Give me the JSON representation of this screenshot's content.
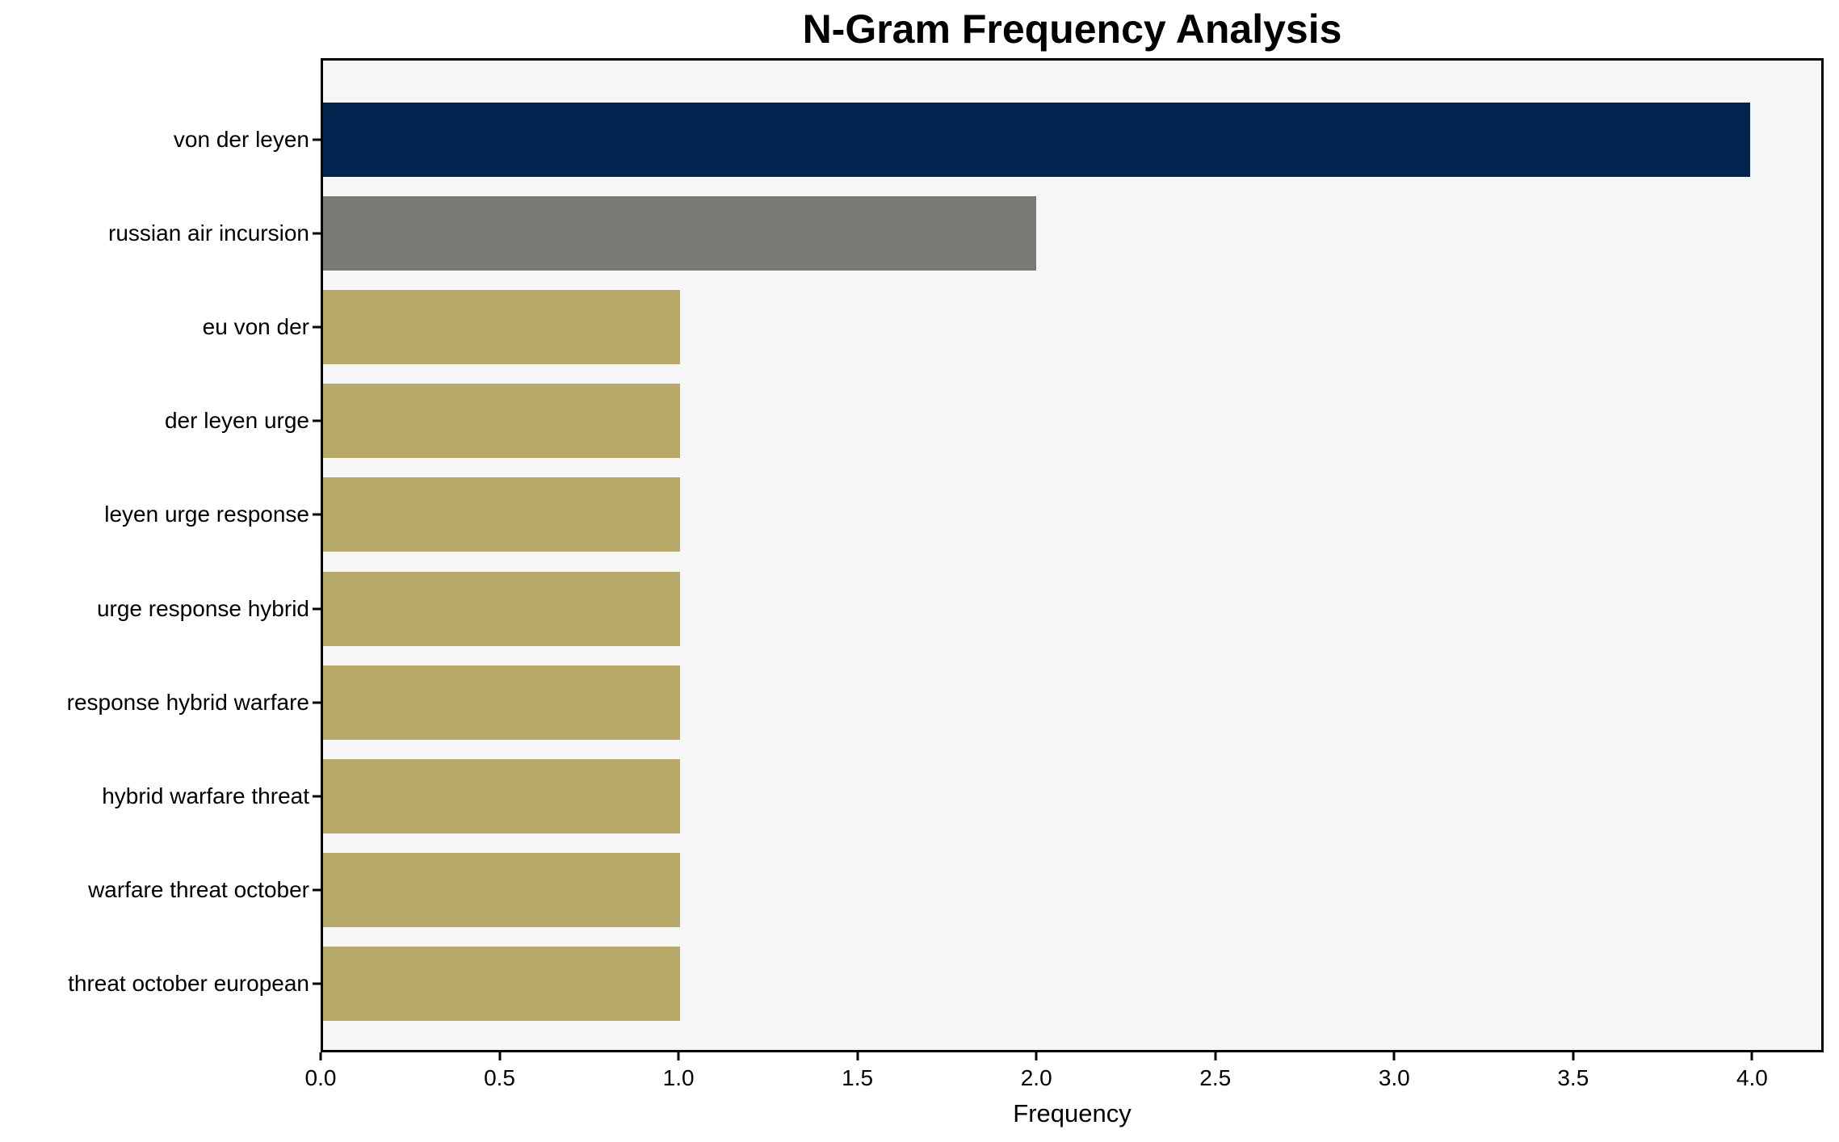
{
  "chart_data": {
    "type": "bar",
    "orientation": "horizontal",
    "title": "N-Gram Frequency Analysis",
    "xlabel": "Frequency",
    "ylabel": "",
    "categories": [
      "von der leyen",
      "russian air incursion",
      "eu von der",
      "der leyen urge",
      "leyen urge response",
      "urge response hybrid",
      "response hybrid warfare",
      "hybrid warfare threat",
      "warfare threat october",
      "threat october european"
    ],
    "values": [
      4,
      2,
      1,
      1,
      1,
      1,
      1,
      1,
      1,
      1
    ],
    "bar_colors": [
      "#02234e",
      "#7a7a74",
      "#b7a967",
      "#b7a967",
      "#b7a967",
      "#b7a967",
      "#b7a967",
      "#b7a967",
      "#b7a967",
      "#b7a967"
    ],
    "xlim": [
      0,
      4.2
    ],
    "xticks": [
      0,
      0.5,
      1,
      1.5,
      2,
      2.5,
      3,
      3.5,
      4
    ],
    "xtick_labels": [
      "0.0",
      "0.5",
      "1.0",
      "1.5",
      "2.0",
      "2.5",
      "3.0",
      "3.5",
      "4.0"
    ],
    "legend": null,
    "grid": false,
    "styles": {
      "figure_bg": "#ffffff",
      "plot_bg": "#f6f6f6",
      "axis_color": "#000000",
      "navy": "#02234e",
      "gray": "#7a7a74",
      "khaki": "#b7a967"
    }
  }
}
